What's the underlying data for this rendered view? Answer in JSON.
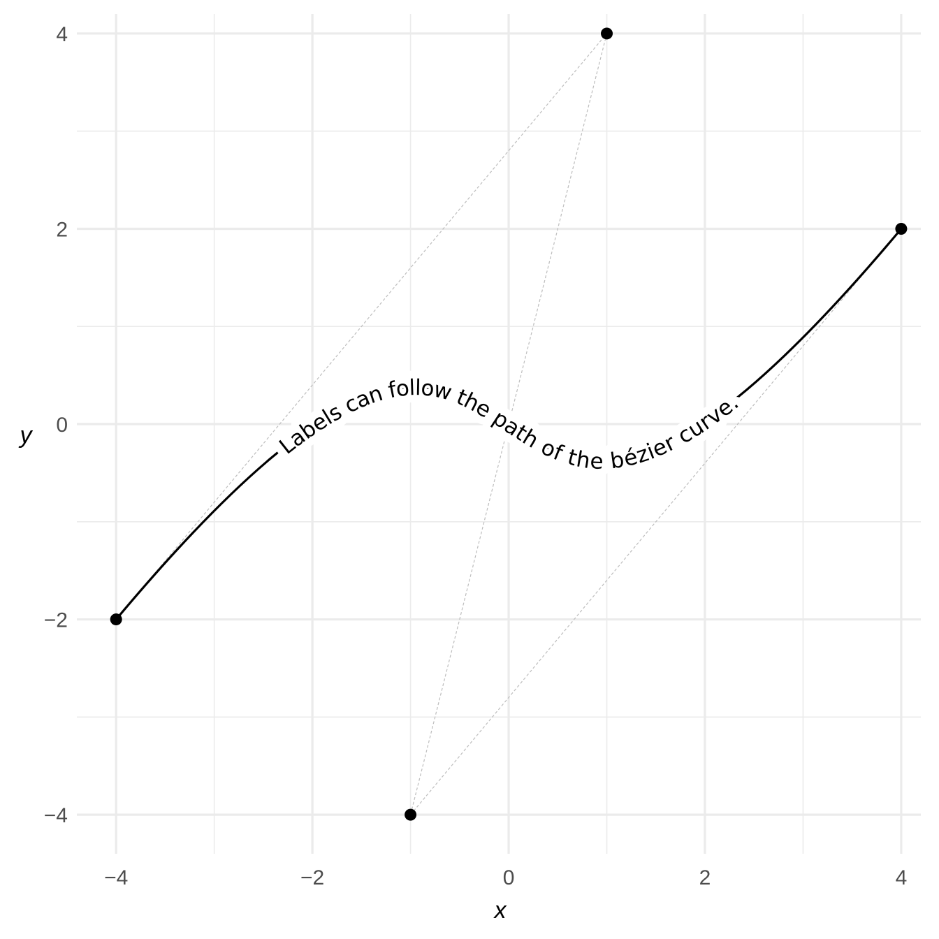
{
  "chart_data": {
    "type": "line",
    "xlabel": "x",
    "ylabel": "y",
    "xlim": [
      -4.4,
      4.2
    ],
    "ylim": [
      -4.4,
      4.2
    ],
    "x_ticks_major": [
      -4,
      -2,
      0,
      2,
      4
    ],
    "x_tick_labels": [
      "−4",
      "−2",
      "0",
      "2",
      "4"
    ],
    "y_ticks_major": [
      -4,
      -2,
      0,
      2,
      4
    ],
    "y_tick_labels": [
      "−4",
      "−2",
      "0",
      "2",
      "4"
    ],
    "ticks_minor": [
      -3,
      -1,
      1,
      3
    ],
    "grid": true,
    "curve": {
      "kind": "cubic-bezier",
      "points": [
        {
          "x": -4,
          "y": -2
        },
        {
          "x": 1,
          "y": 4
        },
        {
          "x": -1,
          "y": -4
        },
        {
          "x": 4,
          "y": 2
        }
      ],
      "label": "Labels can follow the path of the bézier curve."
    },
    "control_polygon": "dashed",
    "colors": {
      "curve": "#000000",
      "points": "#000000",
      "control_lines": "#bdbdbd",
      "grid": "#ebebeb"
    }
  }
}
